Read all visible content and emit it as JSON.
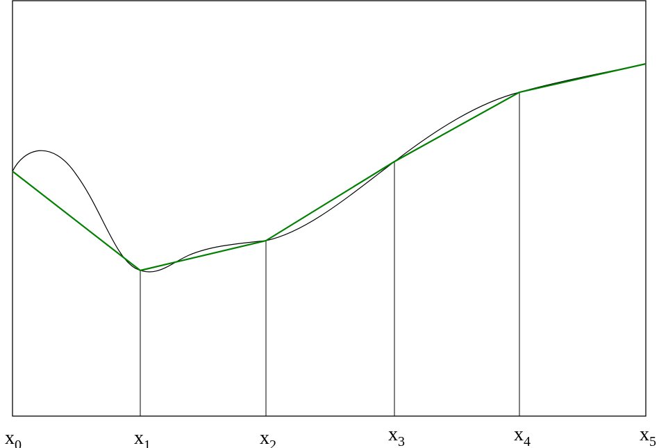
{
  "diagram": {
    "nodes": [
      {
        "label": "x",
        "subscript": "0"
      },
      {
        "label": "x",
        "subscript": "1"
      },
      {
        "label": "x",
        "subscript": "2"
      },
      {
        "label": "x",
        "subscript": "3"
      },
      {
        "label": "x",
        "subscript": "4"
      },
      {
        "label": "x",
        "subscript": "5"
      }
    ],
    "colors": {
      "frame": "#000000",
      "curve": "#000000",
      "interpolant": "#008000",
      "verticals": "#000000",
      "background": "#ffffff"
    }
  }
}
